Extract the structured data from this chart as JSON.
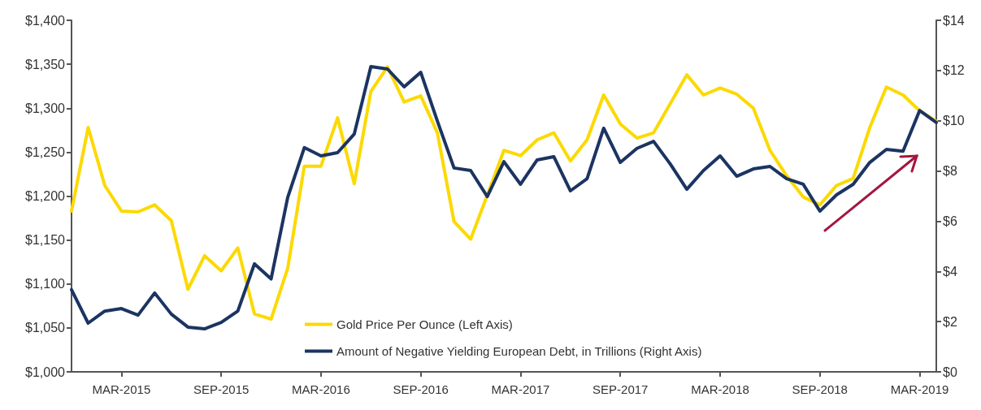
{
  "chart_data": {
    "type": "line",
    "categories": [
      null,
      null,
      null,
      "MAR-2015",
      null,
      null,
      null,
      null,
      null,
      "SEP-2015",
      null,
      null,
      null,
      null,
      null,
      "MAR-2016",
      null,
      null,
      null,
      null,
      null,
      "SEP-2016",
      null,
      null,
      null,
      null,
      null,
      "MAR-2017",
      null,
      null,
      null,
      null,
      null,
      "SEP-2017",
      null,
      null,
      null,
      null,
      null,
      "MAR-2018",
      null,
      null,
      null,
      null,
      null,
      "SEP-2018",
      null,
      null,
      null,
      null,
      null,
      "MAR-2019",
      null
    ],
    "series": [
      {
        "name": "Gold Price Per Ounce (Left Axis)",
        "color": "#fcd900",
        "axis": "y",
        "values": [
          1183,
          1278,
          1212,
          1183,
          1182,
          1190,
          1172,
          1094,
          1132,
          1115,
          1141,
          1066,
          1060,
          1118,
          1234,
          1234,
          1289,
          1214,
          1319,
          1347,
          1307,
          1314,
          1272,
          1171,
          1151,
          1201,
          1252,
          1246,
          1264,
          1272,
          1240,
          1264,
          1315,
          1282,
          1266,
          1272,
          1305,
          1338,
          1315,
          1323,
          1316,
          1300,
          1252,
          1223,
          1199,
          1190,
          1212,
          1220,
          1278,
          1324,
          1315,
          1297,
          1285
        ]
      },
      {
        "name": "Amount of Negative Yielding European Debt, in Trillions (Right Axis)",
        "color": "#1c3461",
        "axis": "y2",
        "values": [
          3.27,
          1.94,
          2.42,
          2.52,
          2.26,
          3.14,
          2.3,
          1.78,
          1.71,
          1.97,
          2.42,
          4.3,
          3.7,
          6.95,
          8.93,
          8.6,
          8.73,
          9.47,
          12.16,
          12.06,
          11.35,
          11.93,
          9.99,
          8.12,
          8.02,
          6.98,
          8.37,
          7.47,
          8.44,
          8.57,
          7.21,
          7.69,
          9.7,
          8.34,
          8.9,
          9.18,
          8.28,
          7.27,
          8.02,
          8.6,
          7.79,
          8.08,
          8.18,
          7.69,
          7.47,
          6.4,
          7.05,
          7.47,
          8.34,
          8.86,
          8.79,
          10.41,
          9.93
        ]
      }
    ],
    "ylim": [
      1000,
      1400
    ],
    "yticks": [
      {
        "value": 1000,
        "label": "$1,000"
      },
      {
        "value": 1050,
        "label": "$1,050"
      },
      {
        "value": 1100,
        "label": "$1,100"
      },
      {
        "value": 1150,
        "label": "$1,150"
      },
      {
        "value": 1200,
        "label": "$1,200"
      },
      {
        "value": 1250,
        "label": "$1,250"
      },
      {
        "value": 1300,
        "label": "$1,300"
      },
      {
        "value": 1350,
        "label": "$1,350"
      },
      {
        "value": 1400,
        "label": "$1,400"
      }
    ],
    "y2lim": [
      0,
      14
    ],
    "y2ticks": [
      {
        "value": 0,
        "label": "$0"
      },
      {
        "value": 2,
        "label": "$2"
      },
      {
        "value": 4,
        "label": "$4"
      },
      {
        "value": 6,
        "label": "$6"
      },
      {
        "value": 8,
        "label": "$8"
      },
      {
        "value": 10,
        "label": "$10"
      },
      {
        "value": 12,
        "label": "$12"
      },
      {
        "value": 14,
        "label": "$14"
      }
    ],
    "legend": "bottom",
    "grid": false,
    "marker": "none",
    "line_style": "solid"
  }
}
